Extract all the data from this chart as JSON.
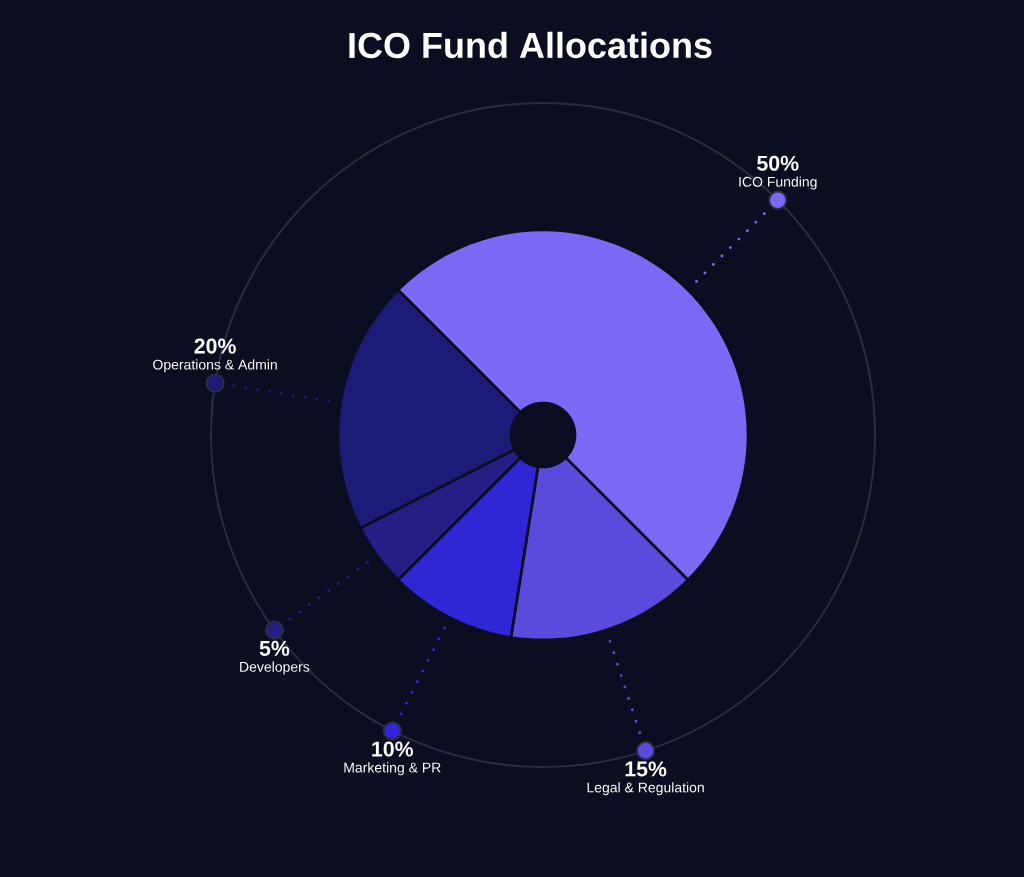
{
  "chart_data": {
    "type": "donut",
    "title": "ICO Fund Allocations",
    "categories": [
      "ICO Funding",
      "Legal & Regulation",
      "Marketing & PR",
      "Developers",
      "Operations & Admin"
    ],
    "values": [
      50,
      15,
      10,
      5,
      20
    ],
    "value_labels": [
      "50%",
      "15%",
      "10%",
      "5%",
      "20%"
    ],
    "colors": [
      "#7b68f5",
      "#5a4bdc",
      "#2f27d6",
      "#241e85",
      "#1e1a78"
    ]
  }
}
